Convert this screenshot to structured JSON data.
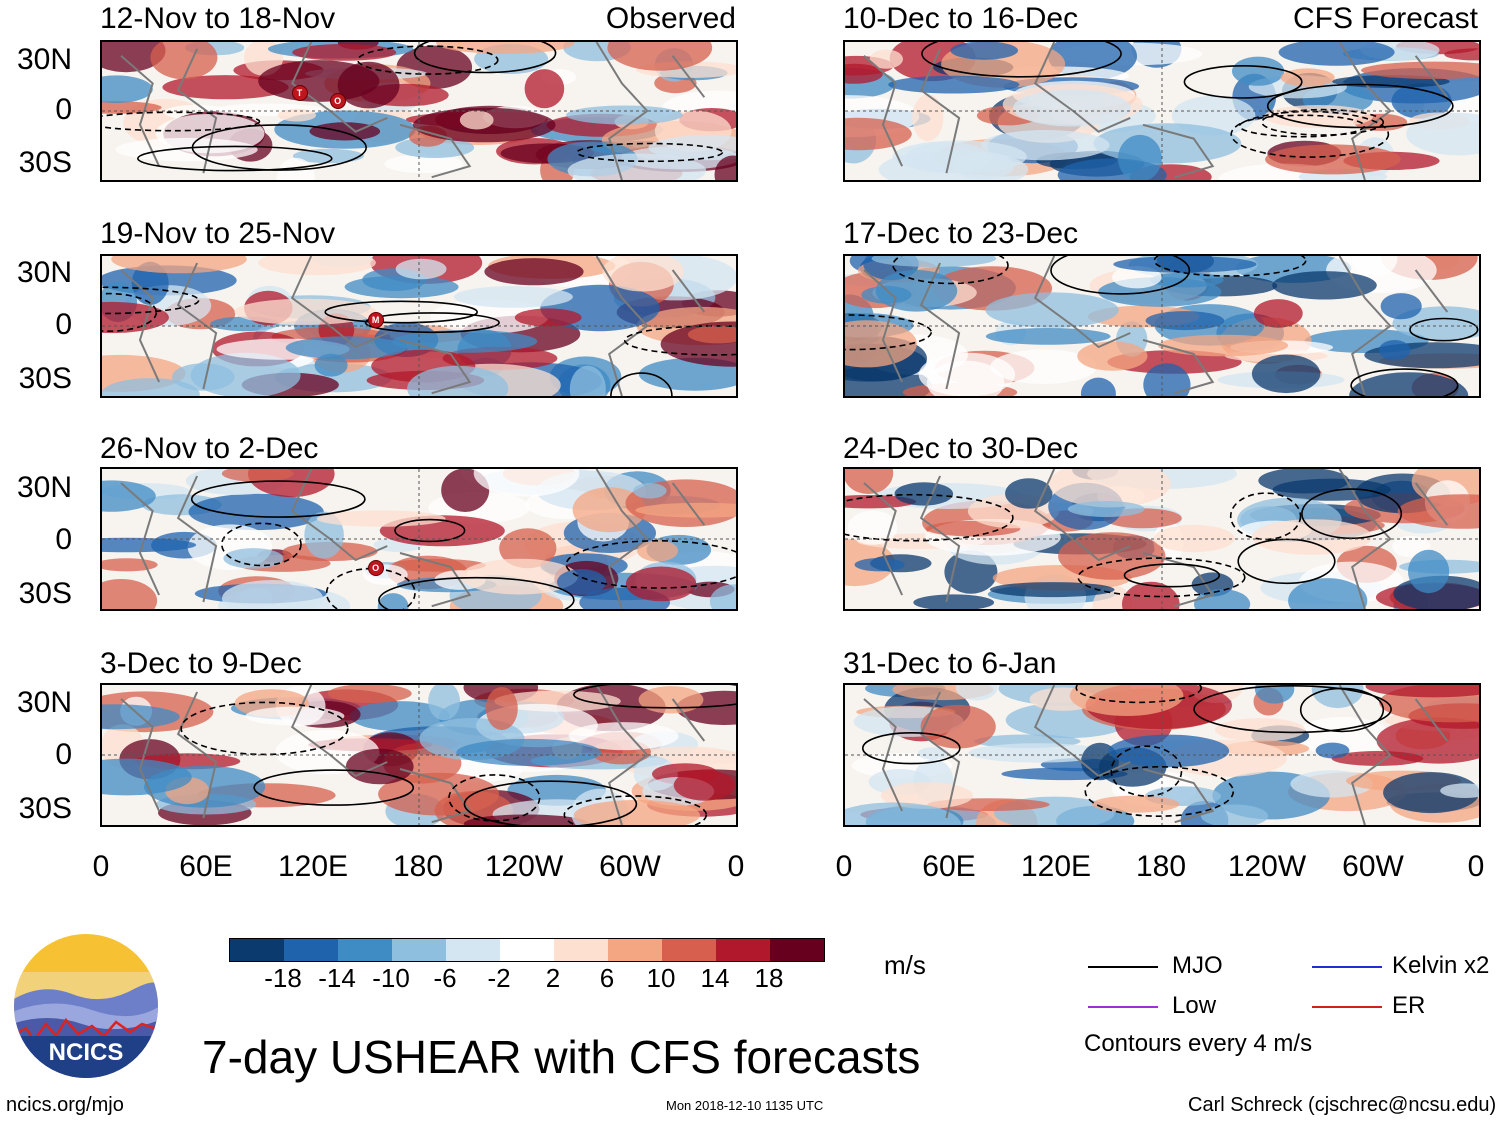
{
  "columns": {
    "left_label": "Observed",
    "right_label": "CFS Forecast"
  },
  "panels_left": [
    {
      "title": "12-Nov to 18-Nov",
      "markers": [
        "T",
        "O"
      ]
    },
    {
      "title": "19-Nov to 25-Nov",
      "markers": [
        "M"
      ]
    },
    {
      "title": "26-Nov to 2-Dec",
      "markers": [
        "O"
      ]
    },
    {
      "title": "3-Dec to 9-Dec",
      "markers": []
    }
  ],
  "panels_right": [
    {
      "title": "10-Dec to 16-Dec"
    },
    {
      "title": "17-Dec to 23-Dec"
    },
    {
      "title": "24-Dec to 30-Dec"
    },
    {
      "title": "31-Dec to 6-Jan"
    }
  ],
  "lat_labels": [
    "30N",
    "0",
    "30S"
  ],
  "lon_labels": [
    "0",
    "60E",
    "120E",
    "180",
    "120W",
    "60W",
    "0"
  ],
  "colorbar": {
    "colors": [
      "#0b3a6e",
      "#1f63ad",
      "#3f8bc4",
      "#8fbfdf",
      "#d4e6f1",
      "#ffffff",
      "#fde0d0",
      "#f4a582",
      "#d6604d",
      "#b2182b",
      "#67001f"
    ],
    "labels": [
      "-18",
      "-14",
      "-10",
      "-6",
      "-2",
      "2",
      "6",
      "10",
      "14",
      "18"
    ],
    "unit": "m/s"
  },
  "legend": {
    "mjo": "MJO",
    "low": "Low",
    "kelvin": "Kelvin x2",
    "er": "ER",
    "mjo_color": "#000000",
    "low_color": "#9b30d9",
    "kelvin_color": "#1f2fd0",
    "er_color": "#d01f1f",
    "contours": "Contours every 4 m/s"
  },
  "logo": {
    "text": "NCICS"
  },
  "main_title": "7-day USHEAR with CFS forecasts",
  "footer": {
    "url": "ncics.org/mjo",
    "timestamp": "Mon 2018-12-10 1135 UTC",
    "author": "Carl Schreck (cjschrec@ncsu.edu)"
  }
}
